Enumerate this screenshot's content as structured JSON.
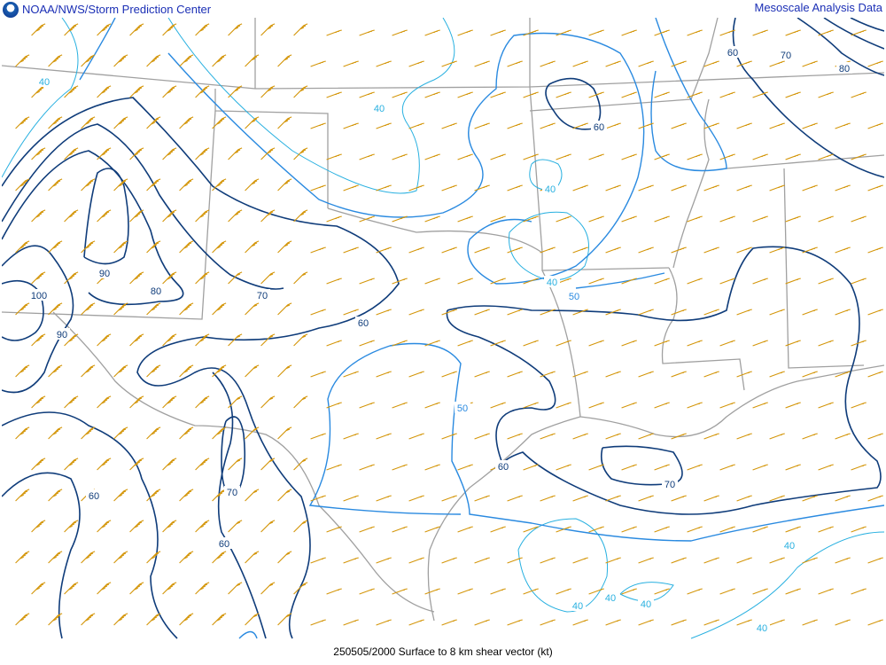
{
  "header": {
    "left_title": "NOAA/NWS/Storm Prediction Center",
    "right_title": "Mesoscale Analysis Data",
    "logo": "noaa-logo"
  },
  "footer": {
    "caption": "250505/2000 Surface to 8 km shear vector (kt)"
  },
  "colors": {
    "barb": "#d4960a",
    "border": "#a0a0a0",
    "contour_dark": "#0f3c7a",
    "contour_mid": "#2a8ae0",
    "contour_light": "#28b0e0",
    "title": "#1b2fb5"
  },
  "contour_labels": [
    {
      "text": "40",
      "color": "light"
    },
    {
      "text": "40",
      "color": "light"
    },
    {
      "text": "40",
      "color": "light"
    },
    {
      "text": "40",
      "color": "light"
    },
    {
      "text": "50",
      "color": "mid"
    },
    {
      "text": "50",
      "color": "mid"
    },
    {
      "text": "60",
      "color": "dark"
    },
    {
      "text": "60",
      "color": "dark"
    },
    {
      "text": "70",
      "color": "dark"
    },
    {
      "text": "80",
      "color": "dark"
    },
    {
      "text": "90",
      "color": "dark"
    },
    {
      "text": "80",
      "color": "dark"
    },
    {
      "text": "70",
      "color": "dark"
    },
    {
      "text": "60",
      "color": "dark"
    },
    {
      "text": "100",
      "color": "dark"
    },
    {
      "text": "90",
      "color": "dark"
    },
    {
      "text": "60",
      "color": "dark"
    },
    {
      "text": "70",
      "color": "dark"
    },
    {
      "text": "60",
      "color": "dark"
    },
    {
      "text": "60",
      "color": "dark"
    },
    {
      "text": "70",
      "color": "dark"
    },
    {
      "text": "40",
      "color": "light"
    },
    {
      "text": "40",
      "color": "light"
    },
    {
      "text": "40",
      "color": "light"
    },
    {
      "text": "40",
      "color": "light"
    },
    {
      "text": "40",
      "color": "light"
    }
  ]
}
